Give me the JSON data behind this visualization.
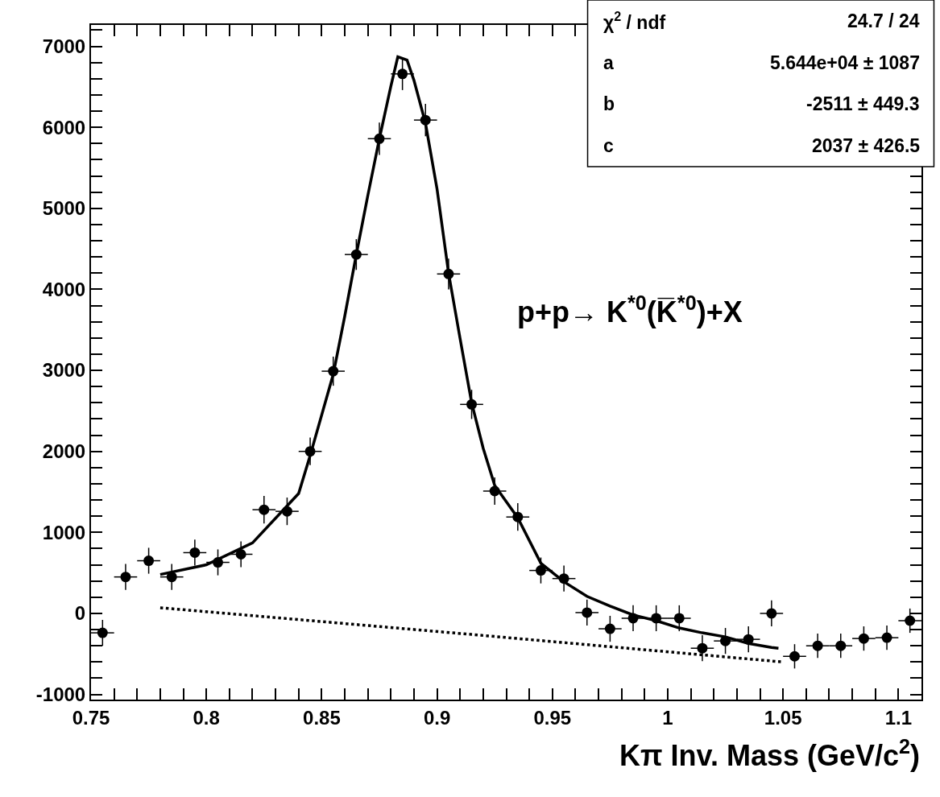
{
  "chart_data": {
    "type": "scatter",
    "xlabel": "Kπ Inv. Mass (GeV/c$^{2}$)",
    "annotations": [
      "p+p→ K$^{*0}$(K̅$^{*0}$)+X",
      "χ$^{2}$ / ndf",
      "24.7 / 24",
      "a",
      "5.644e+04 ± 1087",
      "b",
      "-2511 ± 449.3",
      "c",
      "2037 ± 426.5"
    ],
    "x": [
      0.755,
      0.765,
      0.775,
      0.785,
      0.795,
      0.805,
      0.815,
      0.825,
      0.835,
      0.845,
      0.855,
      0.865,
      0.875,
      0.885,
      0.895,
      0.905,
      0.915,
      0.925,
      0.935,
      0.945,
      0.955,
      0.965,
      0.975,
      0.985,
      0.995,
      1.005,
      1.015,
      1.025,
      1.035,
      1.045,
      1.055,
      1.065,
      1.075,
      1.085,
      1.095,
      1.105
    ],
    "series": [
      {
        "color": "#000000",
        "marker": "circle",
        "values": [
          -240,
          450,
          650,
          450,
          750,
          630,
          730,
          1280,
          1260,
          2000,
          2990,
          4430,
          5860,
          6660,
          6090,
          4190,
          2580,
          1510,
          1190,
          530,
          430,
          10,
          -190,
          -60,
          -60,
          -60,
          -430,
          -340,
          -320,
          0,
          -530,
          -400,
          -400,
          -310,
          -300,
          -90
        ],
        "errors": [
          160,
          160,
          160,
          160,
          160,
          160,
          160,
          170,
          170,
          170,
          180,
          190,
          200,
          200,
          200,
          190,
          180,
          170,
          170,
          160,
          160,
          160,
          160,
          160,
          160,
          160,
          160,
          160,
          160,
          160,
          150,
          150,
          150,
          150,
          150,
          150
        ],
        "xerrors": [
          0.005,
          0.005,
          0.005,
          0.005,
          0.005,
          0.005,
          0.005,
          0.005,
          0.005,
          0.005,
          0.005,
          0.005,
          0.005,
          0.005,
          0.005,
          0.005,
          0.005,
          0.005,
          0.005,
          0.005,
          0.005,
          0.005,
          0.005,
          0.005,
          0.005,
          0.005,
          0.005,
          0.005,
          0.005,
          0.005,
          0.005,
          0.005,
          0.005,
          0.005,
          0.005,
          0.005
        ]
      },
      {
        "type": "line",
        "color": "#000000",
        "line_style": "solid",
        "x": [
          0.78,
          0.8,
          0.82,
          0.84,
          0.845,
          0.855,
          0.86,
          0.865,
          0.87,
          0.875,
          0.88,
          0.883,
          0.887,
          0.89,
          0.895,
          0.9,
          0.905,
          0.91,
          0.915,
          0.92,
          0.925,
          0.935,
          0.945,
          0.955,
          0.965,
          0.975,
          0.985,
          0.995,
          1.005,
          1.015,
          1.025,
          1.035,
          1.045,
          1.048
        ],
        "values": [
          480,
          600,
          870,
          1480,
          1950,
          2950,
          3670,
          4430,
          5160,
          5860,
          6510,
          6870,
          6830,
          6580,
          6050,
          5240,
          4200,
          3390,
          2600,
          2040,
          1580,
          1180,
          620,
          390,
          210,
          90,
          -20,
          -90,
          -180,
          -240,
          -290,
          -370,
          -420,
          -430
        ]
      },
      {
        "type": "line",
        "color": "#000000",
        "line_style": "dotted",
        "x": [
          0.78,
          0.915,
          1.05
        ],
        "values": [
          70,
          -260,
          -600
        ]
      }
    ],
    "xlim": [
      0.75,
      1.11
    ],
    "ylim": [
      -1064,
      7264
    ],
    "xticks": [
      0.75,
      {
        "value": 0.76,
        "label": null
      },
      {
        "value": 0.77,
        "label": null
      },
      {
        "value": 0.78,
        "label": null
      },
      {
        "value": 0.79,
        "label": null
      },
      0.8,
      {
        "value": 0.81,
        "label": null
      },
      {
        "value": 0.82,
        "label": null
      },
      {
        "value": 0.83,
        "label": null
      },
      {
        "value": 0.84,
        "label": null
      },
      0.85,
      {
        "value": 0.86,
        "label": null
      },
      {
        "value": 0.87,
        "label": null
      },
      {
        "value": 0.88,
        "label": null
      },
      {
        "value": 0.89,
        "label": null
      },
      0.9,
      {
        "value": 0.91,
        "label": null
      },
      {
        "value": 0.92,
        "label": null
      },
      {
        "value": 0.93,
        "label": null
      },
      {
        "value": 0.94,
        "label": null
      },
      0.95,
      {
        "value": 0.96,
        "label": null
      },
      {
        "value": 0.97,
        "label": null
      },
      {
        "value": 0.98,
        "label": null
      },
      {
        "value": 0.99,
        "label": null
      },
      1,
      {
        "value": 1.01,
        "label": null
      },
      {
        "value": 1.02,
        "label": null
      },
      {
        "value": 1.03,
        "label": null
      },
      {
        "value": 1.04,
        "label": null
      },
      1.05,
      {
        "value": 1.06,
        "label": null
      },
      {
        "value": 1.07,
        "label": null
      },
      {
        "value": 1.08,
        "label": null
      },
      {
        "value": 1.09,
        "label": null
      },
      1.1,
      {
        "value": 1.11,
        "label": null
      }
    ],
    "yticks": [
      -1000,
      {
        "value": -800,
        "label": null
      },
      {
        "value": -600,
        "label": null
      },
      {
        "value": -400,
        "label": null
      },
      {
        "value": -200,
        "label": null
      },
      0,
      {
        "value": 200,
        "label": null
      },
      {
        "value": 400,
        "label": null
      },
      {
        "value": 600,
        "label": null
      },
      {
        "value": 800,
        "label": null
      },
      1000,
      {
        "value": 1200,
        "label": null
      },
      {
        "value": 1400,
        "label": null
      },
      {
        "value": 1600,
        "label": null
      },
      {
        "value": 1800,
        "label": null
      },
      2000,
      {
        "value": 2200,
        "label": null
      },
      {
        "value": 2400,
        "label": null
      },
      {
        "value": 2600,
        "label": null
      },
      {
        "value": 2800,
        "label": null
      },
      3000,
      {
        "value": 3200,
        "label": null
      },
      {
        "value": 3400,
        "label": null
      },
      {
        "value": 3600,
        "label": null
      },
      {
        "value": 3800,
        "label": null
      },
      4000,
      {
        "value": 4200,
        "label": null
      },
      {
        "value": 4400,
        "label": null
      },
      {
        "value": 4600,
        "label": null
      },
      {
        "value": 4800,
        "label": null
      },
      5000,
      {
        "value": 5200,
        "label": null
      },
      {
        "value": 5400,
        "label": null
      },
      {
        "value": 5600,
        "label": null
      },
      {
        "value": 5800,
        "label": null
      },
      6000,
      {
        "value": 6200,
        "label": null
      },
      {
        "value": 6400,
        "label": null
      },
      {
        "value": 6600,
        "label": null
      },
      {
        "value": 6800,
        "label": null
      },
      7000,
      {
        "value": 7200,
        "label": null
      }
    ]
  }
}
